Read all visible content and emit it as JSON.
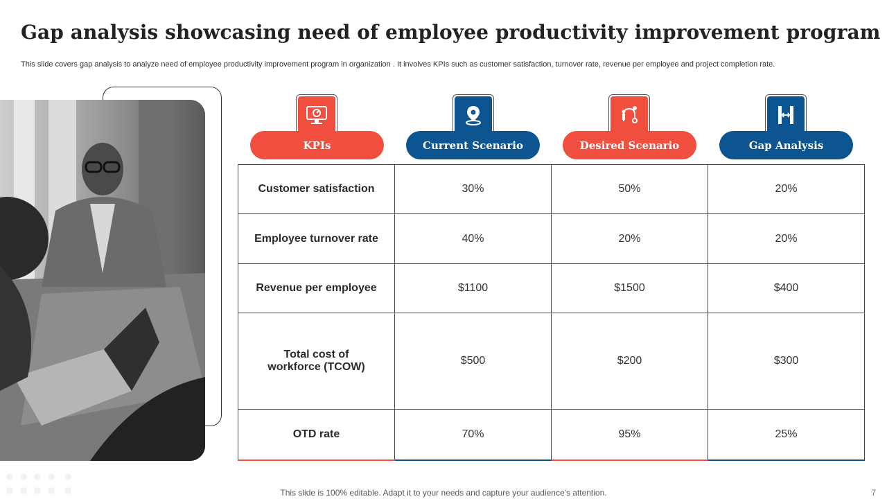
{
  "slide": {
    "title": "Gap analysis showcasing need of employee productivity improvement program",
    "subtitle": "This slide covers gap analysis to analyze  need of employee productivity improvement program in organization . It involves KPIs such as customer satisfaction, turnover rate, revenue per employee and project completion rate.",
    "footer": "This slide is 100% editable. Adapt it to your needs and capture your audience's attention.",
    "page_number": "7"
  },
  "headers": [
    {
      "label": "KPIs",
      "icon": "monitor-chart-icon",
      "color": "#f04e3e"
    },
    {
      "label": "Current Scenario",
      "icon": "location-pin-icon",
      "color": "#0d5590"
    },
    {
      "label": "Desired Scenario",
      "icon": "path-person-icon",
      "color": "#f04e3e"
    },
    {
      "label": "Gap Analysis",
      "icon": "gap-bars-icon",
      "color": "#0d5590"
    }
  ],
  "table": {
    "rows": [
      [
        "Customer satisfaction",
        "30%",
        "50%",
        "20%"
      ],
      [
        "Employee turnover rate",
        "40%",
        "20%",
        "20%"
      ],
      [
        "Revenue per employee",
        "$1100",
        "$1500",
        "$400"
      ],
      [
        "Total cost of workforce (TCOW)",
        "$500",
        "$200",
        "$300"
      ],
      [
        "OTD rate",
        "70%",
        "95%",
        "25%"
      ]
    ]
  }
}
